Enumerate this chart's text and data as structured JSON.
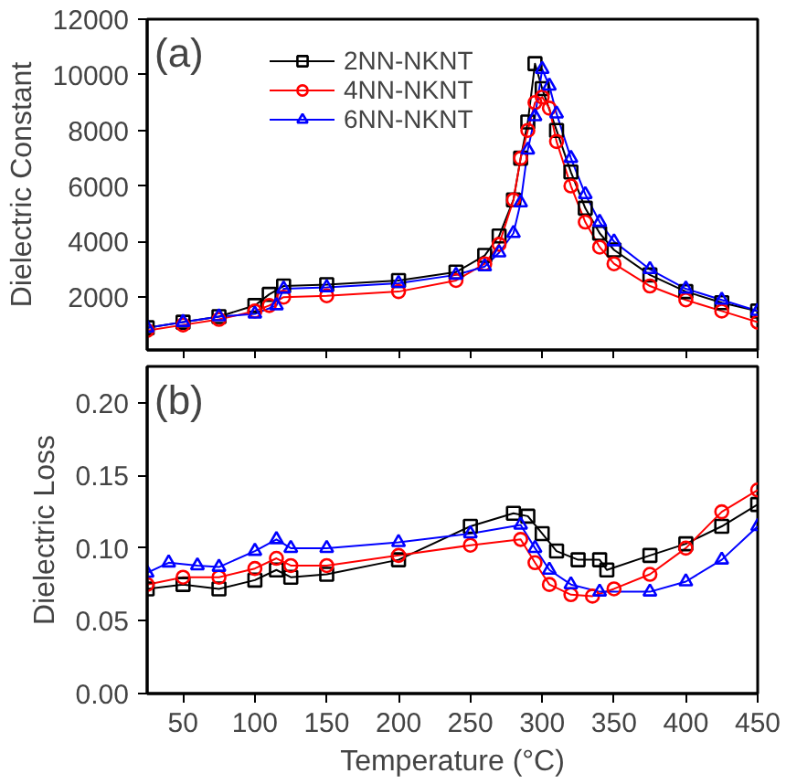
{
  "chart_data": [
    {
      "type": "line",
      "ylabel": "Dielectric Constant",
      "annotations": [
        "(a)"
      ],
      "xlim": [
        25,
        450
      ],
      "xticks": [
        {
          "value": 50,
          "label": null
        },
        {
          "value": 100,
          "label": null
        },
        {
          "value": 150,
          "label": null
        },
        {
          "value": 200,
          "label": null
        },
        {
          "value": 250,
          "label": null
        },
        {
          "value": 300,
          "label": null
        },
        {
          "value": 350,
          "label": null
        },
        {
          "value": 400,
          "label": null
        },
        {
          "value": 450,
          "label": null
        }
      ],
      "ylim": [
        100,
        12000
      ],
      "yticks": [
        2000,
        4000,
        6000,
        8000,
        10000,
        12000
      ],
      "tick_labels": "y",
      "legend": "top",
      "grid": false,
      "line_style": "solid",
      "series": [
        {
          "name": "2NN-NKNT",
          "color": "#000000",
          "marker": "square",
          "x": [
            25,
            50,
            75,
            100,
            110,
            120,
            150,
            200,
            240,
            260,
            270,
            280,
            285,
            290,
            295,
            300,
            310,
            320,
            330,
            340,
            350,
            375,
            400,
            425,
            450
          ],
          "values": [
            900,
            1100,
            1300,
            1700,
            2100,
            2400,
            2450,
            2600,
            2900,
            3500,
            4200,
            5500,
            7000,
            8300,
            10400,
            9500,
            8000,
            6500,
            5200,
            4300,
            3700,
            2800,
            2200,
            1800,
            1500
          ]
        },
        {
          "name": "4NN-NKNT",
          "color": "#ff0000",
          "marker": "circle",
          "x": [
            25,
            50,
            75,
            100,
            110,
            120,
            150,
            200,
            240,
            260,
            270,
            280,
            285,
            290,
            295,
            300,
            305,
            310,
            320,
            330,
            340,
            350,
            375,
            400,
            425,
            450
          ],
          "values": [
            800,
            1000,
            1200,
            1500,
            1700,
            2000,
            2050,
            2200,
            2600,
            3200,
            3900,
            5500,
            7000,
            8000,
            9000,
            9200,
            8800,
            7600,
            6000,
            4700,
            3800,
            3200,
            2400,
            1900,
            1500,
            1100
          ]
        },
        {
          "name": "6NN-NKNT",
          "color": "#0000ff",
          "marker": "triangle",
          "x": [
            25,
            50,
            75,
            100,
            115,
            120,
            150,
            200,
            240,
            260,
            270,
            280,
            285,
            290,
            295,
            300,
            305,
            310,
            320,
            330,
            340,
            350,
            375,
            400,
            425,
            450
          ],
          "values": [
            900,
            1100,
            1300,
            1400,
            1700,
            2300,
            2350,
            2500,
            2800,
            3100,
            3600,
            4300,
            5400,
            7300,
            8500,
            10200,
            9600,
            8600,
            7000,
            5700,
            4700,
            4000,
            3000,
            2300,
            1900,
            1500
          ]
        }
      ]
    },
    {
      "type": "line",
      "xlabel": "Temperature (°C)",
      "ylabel": "Dielectric Loss",
      "annotations": [
        "(b)"
      ],
      "xlim": [
        25,
        450
      ],
      "xticks": [
        50,
        100,
        150,
        200,
        250,
        300,
        350,
        400,
        450
      ],
      "ylim": [
        0,
        0.225
      ],
      "yticks": [
        {
          "value": 0,
          "label": "0.00"
        },
        0.05,
        {
          "value": 0.1,
          "label": "0.10"
        },
        0.15,
        {
          "value": 0.2,
          "label": "0.20"
        }
      ],
      "grid": false,
      "line_style": "solid",
      "series": [
        {
          "color": "#000000",
          "marker": "square",
          "x": [
            25,
            50,
            75,
            100,
            115,
            125,
            150,
            200,
            250,
            280,
            290,
            300,
            310,
            325,
            340,
            345,
            375,
            400,
            425,
            450
          ],
          "values": [
            0.072,
            0.075,
            0.072,
            0.078,
            0.085,
            0.08,
            0.082,
            0.092,
            0.115,
            0.124,
            0.122,
            0.11,
            0.098,
            0.092,
            0.092,
            0.085,
            0.095,
            0.103,
            0.115,
            0.13
          ]
        },
        {
          "color": "#ff0000",
          "marker": "circle",
          "x": [
            25,
            50,
            75,
            100,
            115,
            125,
            150,
            200,
            250,
            285,
            295,
            305,
            320,
            335,
            350,
            375,
            400,
            425,
            450
          ],
          "values": [
            0.075,
            0.08,
            0.08,
            0.086,
            0.093,
            0.088,
            0.088,
            0.095,
            0.102,
            0.106,
            0.09,
            0.075,
            0.068,
            0.067,
            0.072,
            0.082,
            0.1,
            0.125,
            0.14
          ]
        },
        {
          "color": "#0000ff",
          "marker": "triangle",
          "x": [
            25,
            40,
            60,
            75,
            100,
            115,
            125,
            150,
            200,
            250,
            285,
            295,
            305,
            320,
            340,
            375,
            400,
            425,
            450
          ],
          "values": [
            0.083,
            0.09,
            0.088,
            0.087,
            0.098,
            0.106,
            0.1,
            0.1,
            0.104,
            0.11,
            0.116,
            0.1,
            0.085,
            0.075,
            0.07,
            0.07,
            0.077,
            0.092,
            0.115
          ]
        }
      ]
    }
  ]
}
